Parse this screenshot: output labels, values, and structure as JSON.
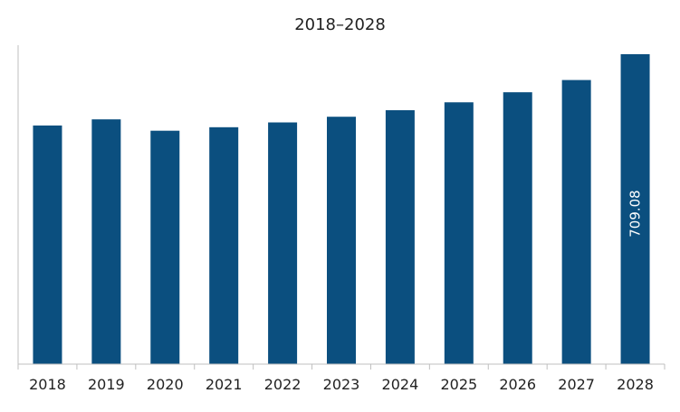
{
  "chart_data": {
    "type": "bar",
    "title": "2018–2028",
    "xlabel": "",
    "ylabel": "",
    "categories": [
      "2018",
      "2019",
      "2020",
      "2021",
      "2022",
      "2023",
      "2024",
      "2025",
      "2026",
      "2027",
      "2028"
    ],
    "values": [
      546,
      560,
      534,
      542,
      553,
      566,
      581,
      599,
      622,
      650,
      709.08
    ],
    "data_labels": {
      "2028": "709.08"
    },
    "ylim": [
      0,
      709.08
    ],
    "grid": false,
    "legend": "none",
    "bar_color": "#0b4f7f",
    "label_color": "#ffffff"
  }
}
